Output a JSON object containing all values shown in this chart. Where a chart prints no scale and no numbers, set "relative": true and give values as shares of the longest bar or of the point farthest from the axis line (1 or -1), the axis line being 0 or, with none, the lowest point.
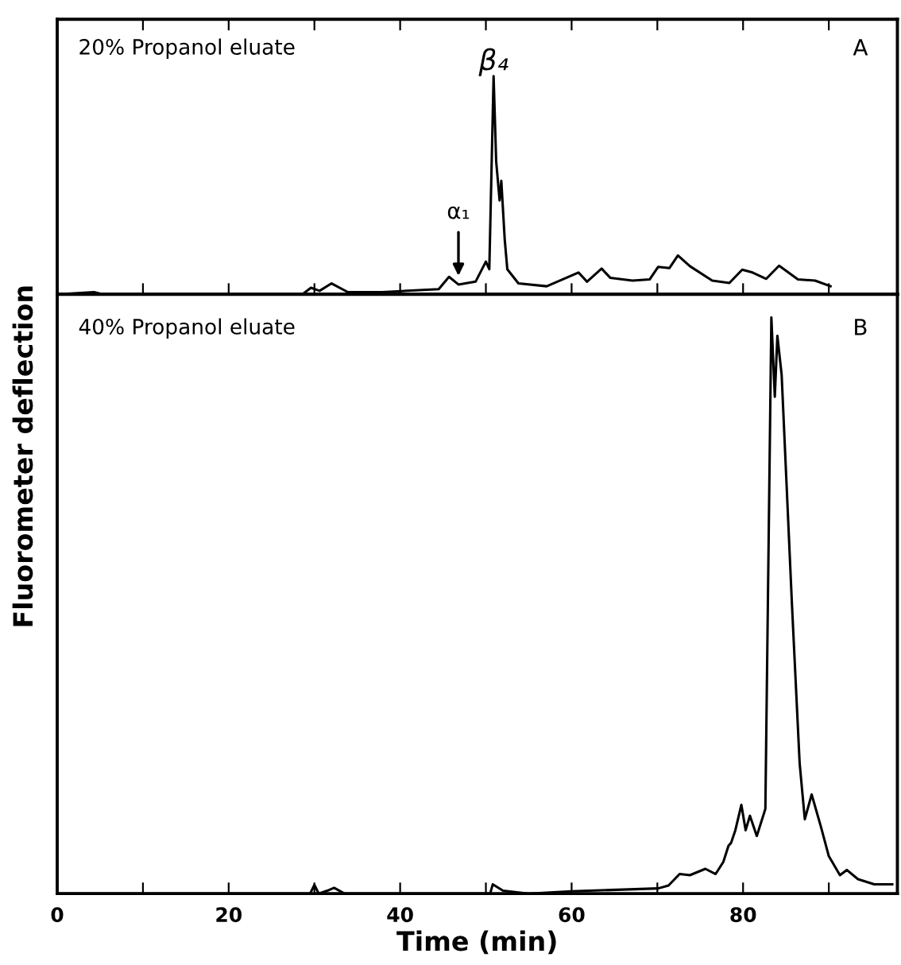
{
  "chart_data": [
    {
      "type": "line",
      "relative": true,
      "xlim": [
        0,
        98
      ],
      "xticks": [
        {
          "value": 10,
          "label": null
        },
        {
          "value": 20,
          "label": null
        },
        {
          "value": 30,
          "label": null
        },
        {
          "value": 40,
          "label": null
        },
        {
          "value": 50,
          "label": null
        },
        {
          "value": 60,
          "label": null
        },
        {
          "value": 70,
          "label": null
        },
        {
          "value": 80,
          "label": null
        },
        {
          "value": 90,
          "label": null
        }
      ],
      "tick_labels": false,
      "grid": false,
      "marker": "none",
      "line_style": "solid",
      "annotations": [
        "20% Propanol eluate",
        "A",
        {
          "text": "β₄",
          "x": 50.9,
          "y": 1.0
        },
        {
          "text": "α₁",
          "x": 46.8,
          "y": 0.045
        }
      ],
      "series": [
        {
          "color": "#000000",
          "x": [
            0,
            4.3,
            5.3,
            28.6,
            29.6,
            30.6,
            32.0,
            33.9,
            37.9,
            44.5,
            45.7,
            46.8,
            48.8,
            50.0,
            50.4,
            50.9,
            51.2,
            51.6,
            51.8,
            52.2,
            52.5,
            53.8,
            57.1,
            60.8,
            61.8,
            63.5,
            64.5,
            67.1,
            69.1,
            70.1,
            71.4,
            72.4,
            73.8,
            76.4,
            78.4,
            79.9,
            81.1,
            82.7,
            84.2,
            86.4,
            88.4,
            90.2
          ],
          "values": [
            0,
            0.01,
            0,
            0,
            0.03,
            0.016,
            0.05,
            0.01,
            0.01,
            0.024,
            0.08,
            0.045,
            0.058,
            0.15,
            0.115,
            1.0,
            0.61,
            0.43,
            0.52,
            0.25,
            0.115,
            0.05,
            0.037,
            0.1,
            0.058,
            0.118,
            0.076,
            0.063,
            0.068,
            0.126,
            0.12,
            0.178,
            0.129,
            0.063,
            0.052,
            0.113,
            0.1,
            0.071,
            0.131,
            0.068,
            0.063,
            0.037
          ]
        }
      ]
    },
    {
      "type": "line",
      "relative": true,
      "xlim": [
        0,
        98
      ],
      "xticks": [
        0,
        {
          "value": 10,
          "label": null
        },
        20,
        {
          "value": 30,
          "label": null
        },
        40,
        {
          "value": 50,
          "label": null
        },
        60,
        {
          "value": 70,
          "label": null
        },
        80,
        {
          "value": 90,
          "label": null
        }
      ],
      "tick_labels": "x",
      "grid": false,
      "marker": "none",
      "line_style": "solid",
      "xlabel": "Time (min)",
      "ylabel": "Fluorometer deflection",
      "annotations": [
        "40% Propanol eluate",
        "B"
      ],
      "series": [
        {
          "color": "#000000",
          "x": [
            0,
            29.5,
            30,
            30.5,
            31.5,
            32.3,
            33.5,
            50.5,
            50.8,
            52,
            55,
            60,
            70.1,
            71.3,
            72.6,
            73.8,
            75.6,
            76.8,
            77.7,
            78.3,
            78.6,
            79.1,
            79.8,
            80.3,
            80.8,
            81.6,
            82.6,
            83.3,
            83.7,
            84.0,
            84.5,
            85.7,
            86.6,
            87.2,
            88.0,
            89.1,
            90.0,
            91.3,
            92.1,
            93.4,
            95.3,
            97.4
          ],
          "values": [
            0,
            0,
            0.015,
            0,
            0.005,
            0.01,
            0,
            0,
            0.016,
            0.005,
            0,
            0.004,
            0.009,
            0.014,
            0.034,
            0.032,
            0.043,
            0.034,
            0.055,
            0.083,
            0.088,
            0.11,
            0.154,
            0.11,
            0.135,
            0.1,
            0.147,
            1.0,
            0.862,
            0.968,
            0.9,
            0.502,
            0.226,
            0.129,
            0.172,
            0.115,
            0.065,
            0.032,
            0.041,
            0.025,
            0.016,
            0.016
          ]
        }
      ]
    }
  ]
}
